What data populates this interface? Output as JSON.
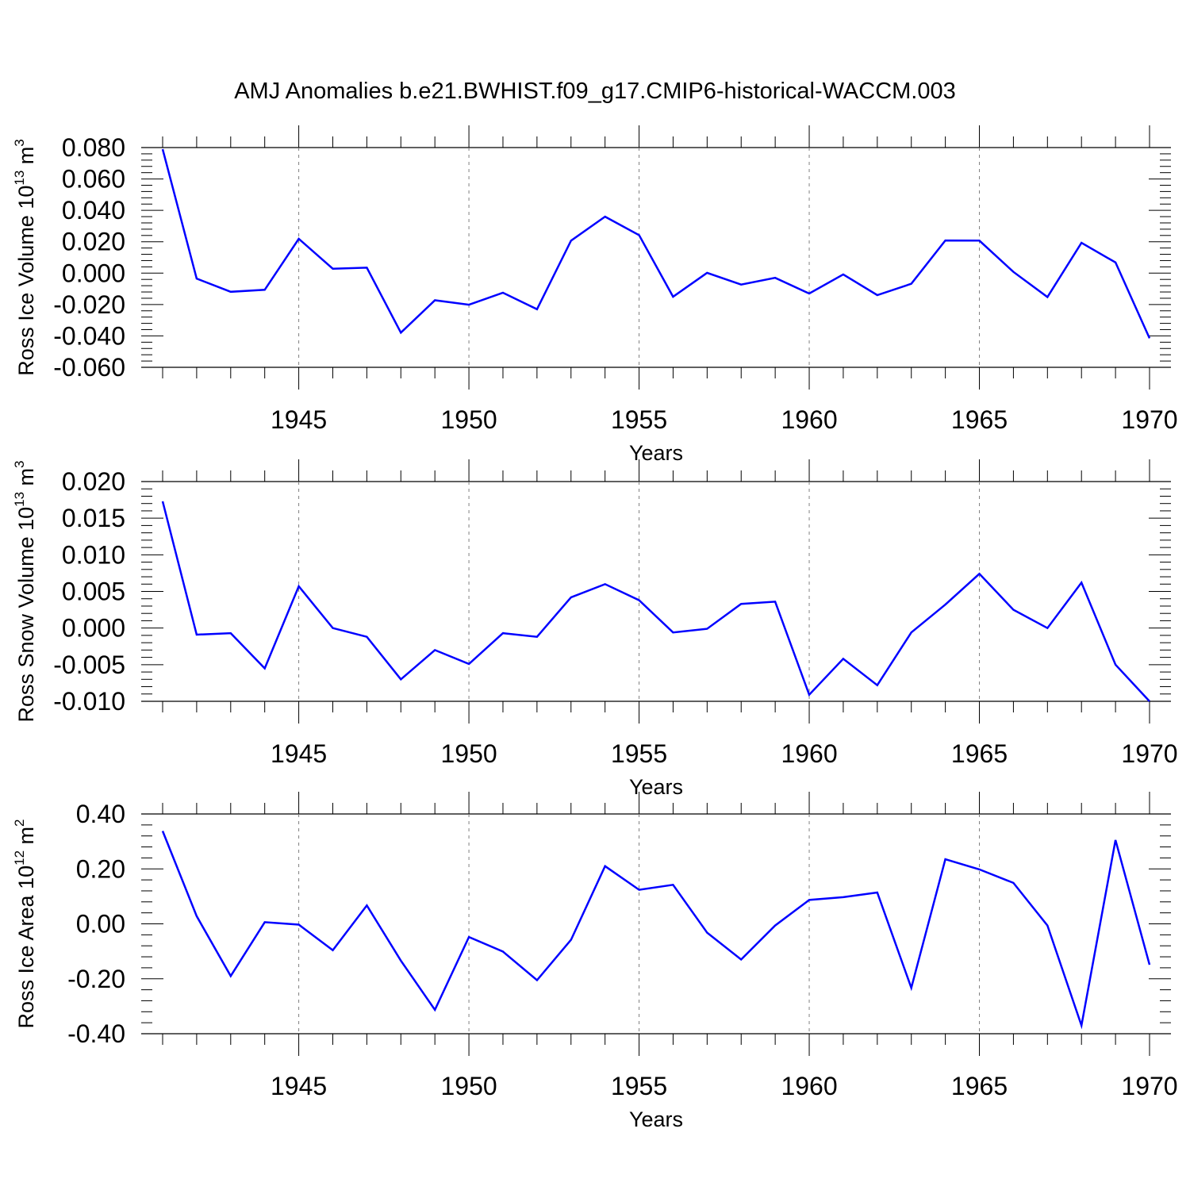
{
  "title": "AMJ Anomalies b.e21.BWHIST.f09_g17.CMIP6-historical-WACCM.003",
  "colors": {
    "series": "#0000ff",
    "axis": "#000000",
    "grid": "#808080"
  },
  "chart_data": [
    {
      "type": "line",
      "title": "",
      "xlabel": "Years",
      "ylabel": {
        "prefix": "Ross Ice Volume 10",
        "exp": "13",
        "unit": " m",
        "unit_exp": "3"
      },
      "xlim": [
        1941,
        1970
      ],
      "ylim": [
        -0.06,
        0.08
      ],
      "xticks": [
        "1945",
        "1950",
        "1955",
        "1960",
        "1965",
        "1970"
      ],
      "yticks": [
        "0.080",
        "0.060",
        "0.040",
        "0.020",
        "0.000",
        "-0.020",
        "-0.040",
        "-0.060"
      ],
      "grid": "vertical dashed at major x ticks",
      "x": [
        1941,
        1942,
        1943,
        1944,
        1945,
        1946,
        1947,
        1948,
        1949,
        1950,
        1951,
        1952,
        1953,
        1954,
        1955,
        1956,
        1957,
        1958,
        1959,
        1960,
        1961,
        1962,
        1963,
        1964,
        1965,
        1966,
        1967,
        1968,
        1969,
        1970
      ],
      "values": [
        0.079,
        -0.0035,
        -0.0119,
        -0.0106,
        0.0219,
        0.0028,
        0.0035,
        -0.0379,
        -0.0173,
        -0.0201,
        -0.0125,
        -0.023,
        0.0207,
        0.036,
        0.0242,
        -0.015,
        0.0002,
        -0.0073,
        -0.003,
        -0.013,
        -0.0008,
        -0.014,
        -0.0068,
        0.0208,
        0.0207,
        0.0008,
        -0.0152,
        0.0193,
        0.0068,
        -0.0415
      ]
    },
    {
      "type": "line",
      "title": "",
      "xlabel": "Years",
      "ylabel": {
        "prefix": "Ross Snow Volume 10",
        "exp": "13",
        "unit": " m",
        "unit_exp": "3"
      },
      "xlim": [
        1941,
        1970
      ],
      "ylim": [
        -0.01,
        0.02
      ],
      "xticks": [
        "1945",
        "1950",
        "1955",
        "1960",
        "1965",
        "1970"
      ],
      "yticks": [
        "0.020",
        "0.015",
        "0.010",
        "0.005",
        "0.000",
        "-0.005",
        "-0.010"
      ],
      "grid": "vertical dashed at major x ticks",
      "x": [
        1941,
        1942,
        1943,
        1944,
        1945,
        1946,
        1947,
        1948,
        1949,
        1950,
        1951,
        1952,
        1953,
        1954,
        1955,
        1956,
        1957,
        1958,
        1959,
        1960,
        1961,
        1962,
        1963,
        1964,
        1965,
        1966,
        1967,
        1968,
        1969,
        1970
      ],
      "values": [
        0.0173,
        -0.0009,
        -0.0007,
        -0.0055,
        0.0057,
        0.0,
        -0.0012,
        -0.007,
        -0.003,
        -0.0049,
        -0.0007,
        -0.0012,
        0.0042,
        0.006,
        0.0038,
        -0.0006,
        -0.0001,
        0.0033,
        0.0036,
        -0.0091,
        -0.0042,
        -0.0078,
        -0.0006,
        0.0032,
        0.0074,
        0.0025,
        0.0,
        0.0062,
        -0.005,
        -0.01
      ]
    },
    {
      "type": "line",
      "title": "",
      "xlabel": "Years",
      "ylabel": {
        "prefix": "Ross Ice Area 10",
        "exp": "12",
        "unit": " m",
        "unit_exp": "2"
      },
      "xlim": [
        1941,
        1970
      ],
      "ylim": [
        -0.4,
        0.4
      ],
      "xticks": [
        "1945",
        "1950",
        "1955",
        "1960",
        "1965",
        "1970"
      ],
      "yticks": [
        "0.40",
        "0.20",
        "0.00",
        "-0.20",
        "-0.40"
      ],
      "grid": "vertical dashed at major x ticks",
      "x": [
        1941,
        1942,
        1943,
        1944,
        1945,
        1946,
        1947,
        1948,
        1949,
        1950,
        1951,
        1952,
        1953,
        1954,
        1955,
        1956,
        1957,
        1958,
        1959,
        1960,
        1961,
        1962,
        1963,
        1964,
        1965,
        1966,
        1967,
        1968,
        1969,
        1970
      ],
      "values": [
        0.338,
        0.028,
        -0.19,
        0.006,
        -0.003,
        -0.096,
        0.067,
        -0.134,
        -0.313,
        -0.048,
        -0.101,
        -0.205,
        -0.058,
        0.21,
        0.124,
        0.142,
        -0.032,
        -0.13,
        -0.006,
        0.087,
        0.097,
        0.114,
        -0.233,
        0.235,
        0.198,
        0.149,
        -0.006,
        -0.37,
        0.305,
        -0.149
      ]
    }
  ]
}
